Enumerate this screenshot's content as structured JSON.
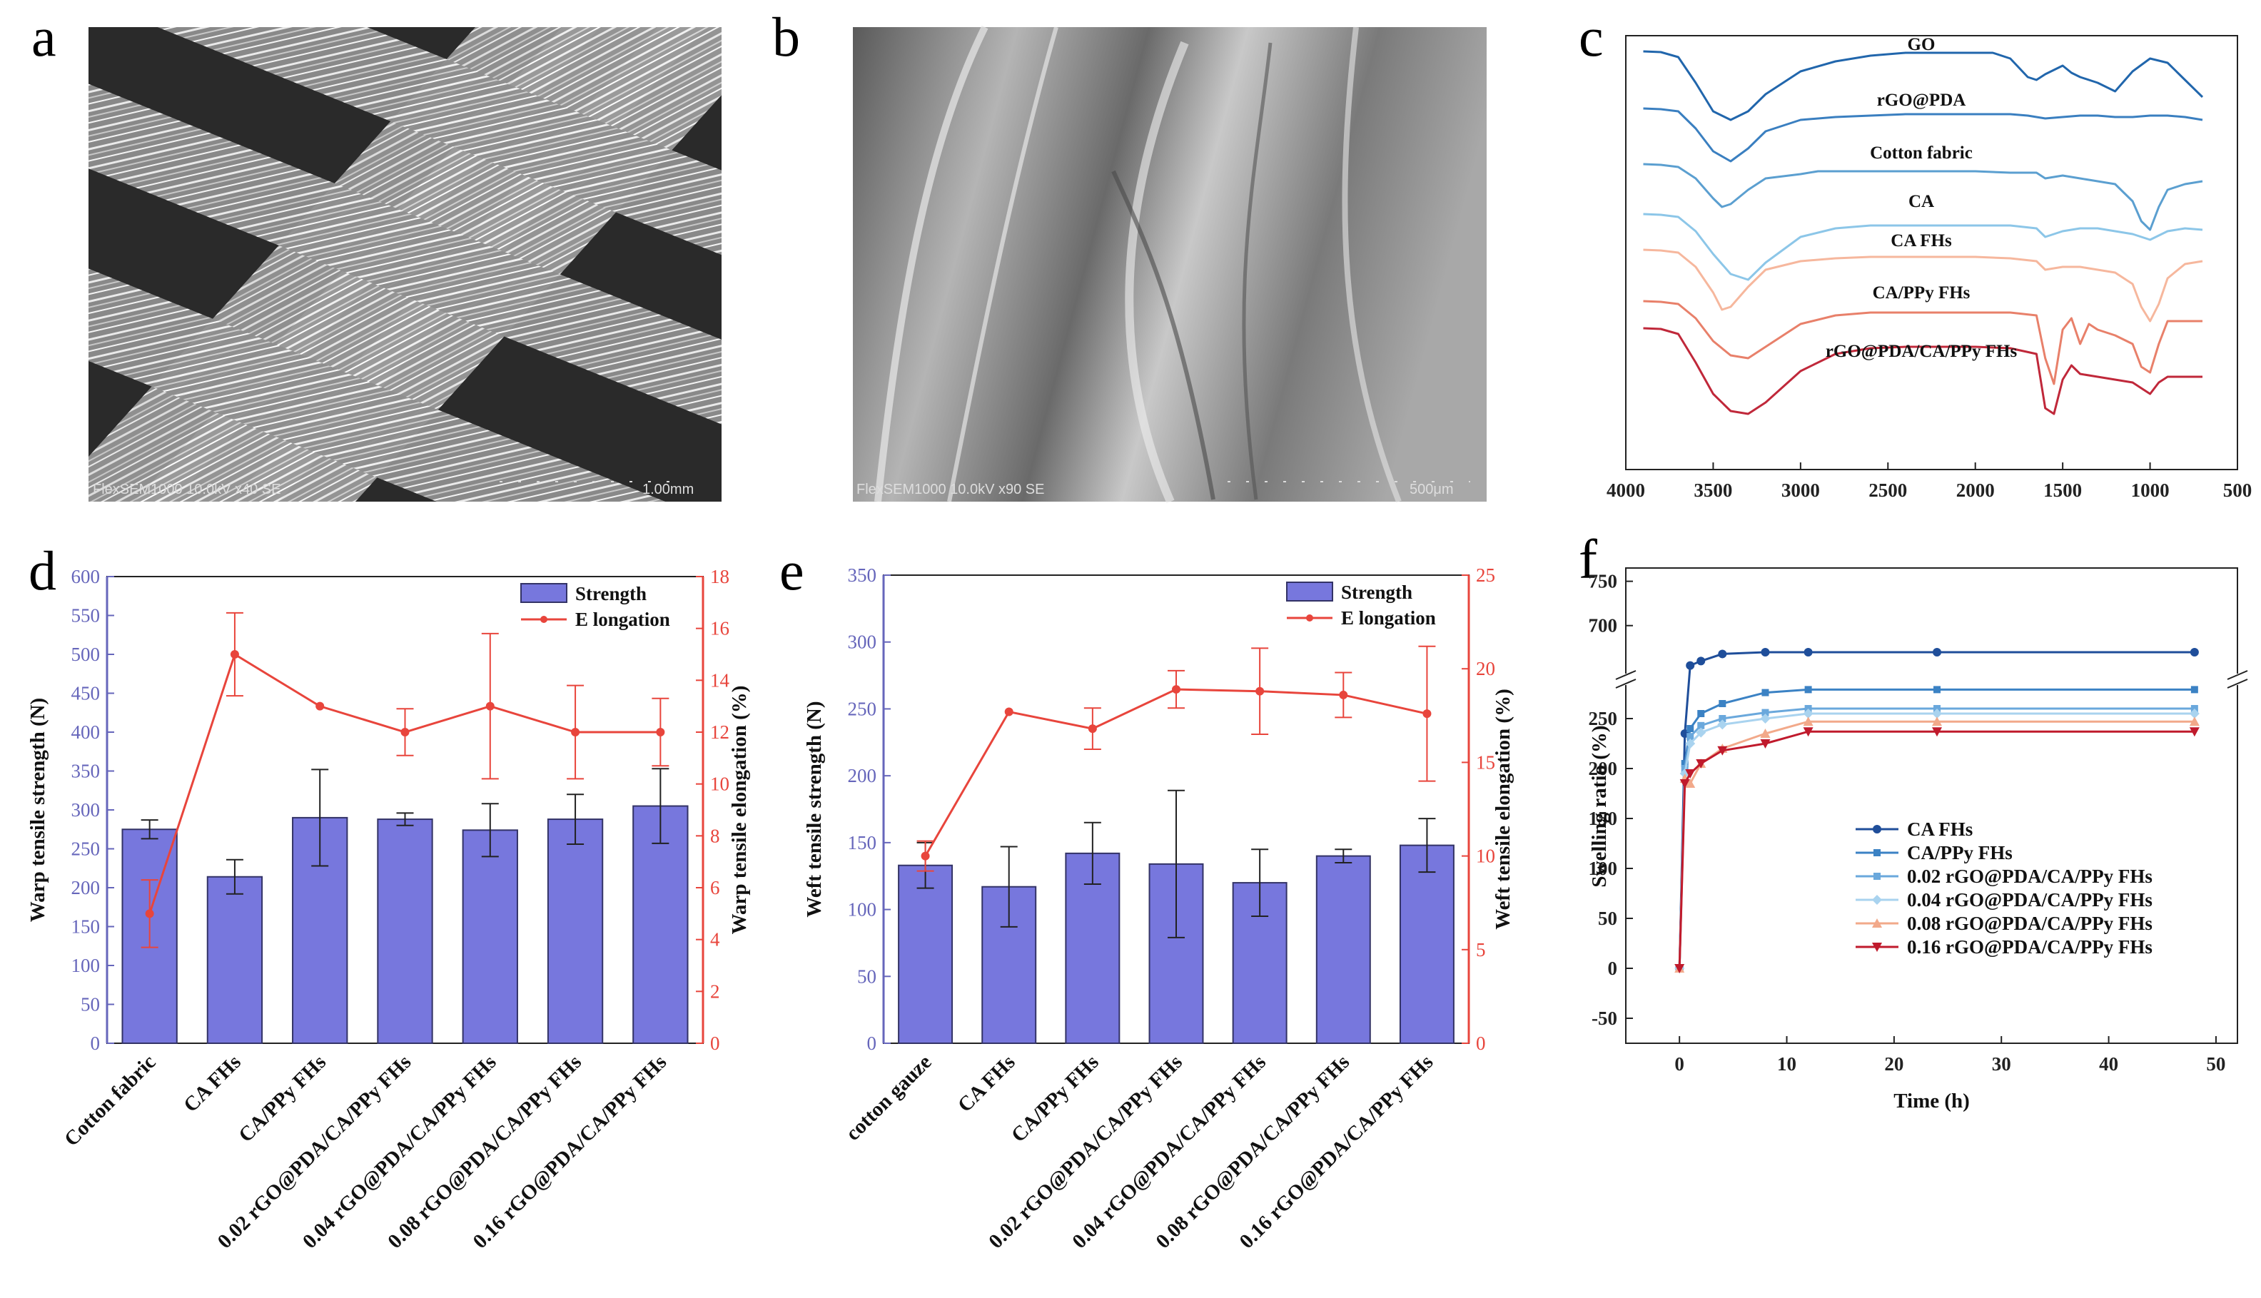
{
  "panels": {
    "a": {
      "letter": "a",
      "sem_caption": "FlexSEM1000 10.0kV x40 SE",
      "scale_label": "1.00mm"
    },
    "b": {
      "letter": "b",
      "sem_caption": "FlexSEM1000 10.0kV x90 SE",
      "scale_label": "500μm"
    },
    "c": {
      "letter": "c"
    },
    "d": {
      "letter": "d"
    },
    "e": {
      "letter": "e"
    },
    "f": {
      "letter": "f"
    }
  },
  "colors": {
    "bar_fill": "#7777dd",
    "bar_edge": "#333366",
    "elong": "#e8453c",
    "ftir": [
      "#2166ac",
      "#3a7fc0",
      "#5b9fd0",
      "#8cc6e8",
      "#f6b79d",
      "#e8806a",
      "#c0283a"
    ],
    "swell": [
      "#1f4e9a",
      "#3b82c4",
      "#6aa8dc",
      "#a9d3ef",
      "#f2a98a",
      "#c01a2c"
    ]
  },
  "chart_data": [
    {
      "id": "c",
      "type": "line",
      "title": "",
      "xlabel": "",
      "xlim": [
        4000,
        500
      ],
      "xticks": [
        "4000",
        "3500",
        "3000",
        "2500",
        "2000",
        "1500",
        "1000",
        "500"
      ],
      "series": [
        {
          "name": "GO",
          "x": [
            3900,
            3800,
            3700,
            3600,
            3500,
            3400,
            3300,
            3200,
            3000,
            2800,
            2600,
            2400,
            2200,
            2000,
            1900,
            1800,
            1700,
            1650,
            1600,
            1500,
            1450,
            1400,
            1300,
            1200,
            1100,
            1000,
            900,
            800,
            700
          ],
          "y": [
            0,
            0.5,
            4,
            22,
            42,
            48,
            42,
            30,
            14,
            7,
            3,
            1,
            1,
            1,
            1,
            5,
            18,
            20,
            16,
            10,
            15,
            18,
            22,
            28,
            14,
            5,
            8,
            20,
            32
          ]
        },
        {
          "name": "rGO@PDA",
          "x": [
            3900,
            3800,
            3700,
            3600,
            3500,
            3400,
            3300,
            3200,
            3000,
            2800,
            2600,
            2400,
            2200,
            2000,
            1800,
            1700,
            1600,
            1500,
            1400,
            1300,
            1200,
            1100,
            1000,
            900,
            800,
            700
          ],
          "y": [
            0,
            0.5,
            2,
            14,
            30,
            37,
            28,
            16,
            8,
            6,
            5,
            4,
            4,
            4,
            4,
            5,
            7,
            6,
            5,
            5,
            6,
            6,
            5,
            5,
            6,
            8
          ]
        },
        {
          "name": "Cotton fabric",
          "x": [
            3900,
            3800,
            3700,
            3600,
            3500,
            3450,
            3400,
            3300,
            3200,
            3000,
            2900,
            2800,
            2600,
            2400,
            2200,
            2000,
            1800,
            1650,
            1600,
            1500,
            1400,
            1300,
            1200,
            1150,
            1100,
            1050,
            1000,
            950,
            900,
            800,
            700
          ],
          "y": [
            0,
            0.5,
            2,
            10,
            24,
            30,
            28,
            18,
            10,
            7,
            5,
            5,
            5,
            5,
            5,
            5,
            6,
            6,
            10,
            8,
            10,
            12,
            14,
            20,
            26,
            40,
            46,
            30,
            18,
            14,
            12
          ]
        },
        {
          "name": "CA",
          "x": [
            3900,
            3800,
            3700,
            3600,
            3500,
            3400,
            3300,
            3200,
            3000,
            2800,
            2600,
            2400,
            2200,
            2000,
            1800,
            1650,
            1600,
            1500,
            1400,
            1300,
            1200,
            1100,
            1000,
            900,
            800,
            700
          ],
          "y": [
            0,
            0.5,
            2,
            12,
            28,
            42,
            46,
            34,
            16,
            10,
            8,
            8,
            8,
            8,
            8,
            10,
            16,
            12,
            10,
            10,
            12,
            14,
            18,
            12,
            10,
            11
          ]
        },
        {
          "name": "CA FHs",
          "x": [
            3900,
            3800,
            3700,
            3600,
            3500,
            3450,
            3400,
            3300,
            3200,
            3000,
            2800,
            2600,
            2400,
            2200,
            2000,
            1800,
            1650,
            1600,
            1500,
            1400,
            1300,
            1200,
            1100,
            1050,
            1000,
            950,
            900,
            800,
            700
          ],
          "y": [
            0,
            0.5,
            2,
            12,
            30,
            42,
            40,
            26,
            14,
            8,
            6,
            5,
            5,
            5,
            5,
            6,
            8,
            14,
            12,
            12,
            14,
            16,
            24,
            40,
            50,
            38,
            20,
            10,
            8
          ]
        },
        {
          "name": "CA/PPy FHs",
          "x": [
            3900,
            3800,
            3700,
            3600,
            3500,
            3400,
            3300,
            3200,
            3000,
            2800,
            2600,
            2400,
            2200,
            2000,
            1800,
            1650,
            1600,
            1550,
            1500,
            1450,
            1400,
            1350,
            1300,
            1200,
            1100,
            1050,
            1000,
            950,
            900,
            800,
            700
          ],
          "y": [
            0,
            0.5,
            2,
            12,
            28,
            38,
            40,
            32,
            16,
            10,
            8,
            8,
            8,
            8,
            8,
            10,
            40,
            58,
            20,
            12,
            30,
            16,
            20,
            24,
            30,
            46,
            50,
            30,
            14,
            14,
            14
          ]
        },
        {
          "name": "rGO@PDA/CA/PPy FHs",
          "x": [
            3900,
            3800,
            3700,
            3600,
            3500,
            3400,
            3300,
            3200,
            3000,
            2800,
            2600,
            2400,
            2200,
            2000,
            1800,
            1650,
            1600,
            1550,
            1500,
            1450,
            1400,
            1300,
            1200,
            1100,
            1050,
            1000,
            950,
            900,
            800,
            700
          ],
          "y": [
            0,
            0.5,
            4,
            24,
            46,
            58,
            60,
            52,
            30,
            18,
            14,
            13,
            13,
            13,
            14,
            18,
            56,
            60,
            36,
            26,
            32,
            34,
            36,
            38,
            42,
            46,
            38,
            34,
            34,
            34
          ]
        }
      ]
    },
    {
      "id": "d",
      "type": "bar",
      "title": "",
      "categories": [
        "Cotton fabric",
        "CA FHs",
        "CA/PPy FHs",
        "0.02 rGO@PDA/CA/PPy FHs",
        "0.04 rGO@PDA/CA/PPy FHs",
        "0.08 rGO@PDA/CA/PPy FHs",
        "0.16 rGO@PDA/CA/PPy FHs"
      ],
      "series": [
        {
          "name": "Strength",
          "axis": "left",
          "values": [
            275,
            214,
            290,
            288,
            274,
            288,
            305
          ],
          "errors": [
            12,
            22,
            62,
            8,
            34,
            32,
            48
          ]
        },
        {
          "name": "E longation",
          "axis": "right",
          "type": "line",
          "values": [
            5,
            15,
            13,
            12,
            13,
            12,
            12
          ],
          "errors": [
            1.3,
            1.6,
            0,
            0.9,
            2.8,
            1.8,
            1.3
          ]
        }
      ],
      "ylabel": "Warp tensile strength (N)",
      "y2label": "Warp tensile  elongation (%)",
      "ylim": [
        0,
        600
      ],
      "y2lim": [
        0,
        18
      ],
      "yticks": [
        "0",
        "50",
        "100",
        "150",
        "200",
        "250",
        "300",
        "350",
        "400",
        "450",
        "500",
        "550",
        "600"
      ],
      "y2ticks": [
        "0",
        "2",
        "4",
        "6",
        "8",
        "10",
        "12",
        "14",
        "16",
        "18"
      ]
    },
    {
      "id": "e",
      "type": "bar",
      "title": "",
      "categories": [
        "cotton gauze",
        "CA FHs",
        "CA/PPy FHs",
        "0.02 rGO@PDA/CA/PPy FHs",
        "0.04 rGO@PDA/CA/PPy FHs",
        "0.08 rGO@PDA/CA/PPy FHs",
        "0.16 rGO@PDA/CA/PPy FHs"
      ],
      "series": [
        {
          "name": "Strength",
          "axis": "left",
          "values": [
            133,
            117,
            142,
            134,
            120,
            140,
            148
          ],
          "errors": [
            17,
            30,
            23,
            55,
            25,
            5,
            20
          ]
        },
        {
          "name": "E longation",
          "axis": "right",
          "type": "line",
          "values": [
            10,
            17.7,
            16.8,
            18.9,
            18.8,
            18.6,
            17.6
          ],
          "errors": [
            0.8,
            0,
            1.1,
            1.0,
            2.3,
            1.2,
            3.6
          ]
        }
      ],
      "ylabel": "Weft tensile strength (N)",
      "y2label": "Weft tensile elongation (%)",
      "ylim": [
        0,
        350
      ],
      "y2lim": [
        0,
        25
      ],
      "yticks": [
        "0",
        "50",
        "100",
        "150",
        "200",
        "250",
        "300",
        "350"
      ],
      "y2ticks": [
        "0",
        "5",
        "10",
        "15",
        "20",
        "25"
      ]
    },
    {
      "id": "f",
      "type": "line",
      "title": "",
      "xlabel": "Time (h)",
      "ylabel": "Swelling ratio (%)",
      "xlim": [
        -5,
        52
      ],
      "xticks": [
        "0",
        "10",
        "20",
        "30",
        "40",
        "50"
      ],
      "yticks_lower": [
        "-50",
        "0",
        "50",
        "100",
        "150",
        "200",
        "250"
      ],
      "yticks_upper": [
        "700",
        "750"
      ],
      "y_break": [
        285,
        645
      ],
      "x": [
        0,
        0.5,
        1,
        2,
        4,
        8,
        12,
        24,
        48
      ],
      "series": [
        {
          "name": "CA FHs",
          "values": [
            0,
            235,
            655,
            660,
            668,
            670,
            670,
            670,
            670
          ]
        },
        {
          "name": "CA/PPy FHs",
          "values": [
            0,
            205,
            240,
            255,
            265,
            276,
            279,
            279,
            279
          ]
        },
        {
          "name": "0.02 rGO@PDA/CA/PPy FHs",
          "values": [
            0,
            200,
            232,
            243,
            250,
            256,
            260,
            260,
            260
          ]
        },
        {
          "name": "0.04 rGO@PDA/CA/PPy FHs",
          "values": [
            0,
            195,
            225,
            236,
            244,
            250,
            255,
            255,
            255
          ]
        },
        {
          "name": "0.08 rGO@PDA/CA/PPy FHs",
          "values": [
            0,
            190,
            185,
            205,
            220,
            235,
            247,
            247,
            247
          ]
        },
        {
          "name": "0.16 rGO@PDA/CA/PPy FHs",
          "values": [
            0,
            185,
            195,
            205,
            218,
            225,
            237,
            237,
            237
          ]
        }
      ]
    }
  ]
}
